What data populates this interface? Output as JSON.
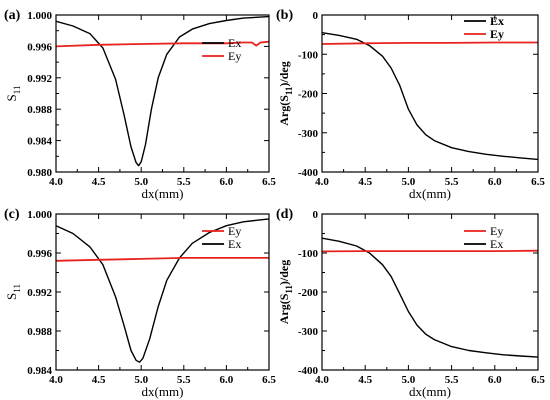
{
  "chart_data": [
    {
      "panel": "(a)",
      "type": "line",
      "xlabel": "dx(mm)",
      "ylabel": "S11",
      "ylabel_main": "S",
      "ylabel_sub": "11",
      "xlim": [
        4.0,
        6.5
      ],
      "ylim": [
        0.98,
        1.0
      ],
      "xticks": [
        4.0,
        4.5,
        5.0,
        5.5,
        6.0,
        6.5
      ],
      "xtick_labels": [
        "4.0",
        "4.5",
        "5.0",
        "5.5",
        "6.0",
        "6.5"
      ],
      "yticks": [
        0.98,
        0.984,
        0.988,
        0.992,
        0.996,
        1.0
      ],
      "ytick_labels": [
        "0.980",
        "0.984",
        "0.988",
        "0.992",
        "0.996",
        "1.000"
      ],
      "legend_bold": false,
      "legend": [
        {
          "name": "Ex",
          "color": "#000000"
        },
        {
          "name": "Ey",
          "color": "#e8231f"
        }
      ],
      "series": [
        {
          "name": "Ex",
          "color": "#000000",
          "x": [
            4.0,
            4.2,
            4.4,
            4.55,
            4.7,
            4.8,
            4.88,
            4.94,
            4.97,
            5.0,
            5.05,
            5.12,
            5.2,
            5.3,
            5.45,
            5.6,
            5.8,
            6.0,
            6.2,
            6.5
          ],
          "y": [
            0.9992,
            0.9986,
            0.9976,
            0.9958,
            0.9918,
            0.9872,
            0.9832,
            0.9812,
            0.9808,
            0.9813,
            0.9835,
            0.988,
            0.992,
            0.995,
            0.9972,
            0.9982,
            0.9989,
            0.9993,
            0.9996,
            0.9998
          ]
        },
        {
          "name": "Ey",
          "color": "#e8231f",
          "x": [
            4.0,
            4.5,
            5.0,
            5.5,
            6.0,
            6.2,
            6.3,
            6.35,
            6.4,
            6.5
          ],
          "y": [
            0.996,
            0.9962,
            0.9963,
            0.9964,
            0.9964,
            0.9965,
            0.9965,
            0.9961,
            0.9965,
            0.9966
          ]
        }
      ]
    },
    {
      "panel": "(b)",
      "type": "line",
      "xlabel": "dx(mm)",
      "ylabel": "Arg(S11)/deg",
      "ylabel_main": "Arg(S",
      "ylabel_sub": "11",
      "ylabel_tail": ")/deg",
      "xlim": [
        4.0,
        6.5
      ],
      "ylim": [
        -400,
        0
      ],
      "xticks": [
        4.0,
        4.5,
        5.0,
        5.5,
        6.0,
        6.5
      ],
      "xtick_labels": [
        "4.0",
        "4.5",
        "5.0",
        "5.5",
        "6.0",
        "6.5"
      ],
      "yticks": [
        -400,
        -300,
        -200,
        -100,
        0
      ],
      "ytick_labels": [
        "-400",
        "-300",
        "-200",
        "-100",
        "0"
      ],
      "legend_bold": true,
      "legend": [
        {
          "name": "Ex",
          "color": "#000000"
        },
        {
          "name": "Ey",
          "color": "#e8231f"
        }
      ],
      "series": [
        {
          "name": "Ex",
          "color": "#000000",
          "x": [
            4.0,
            4.2,
            4.4,
            4.55,
            4.7,
            4.8,
            4.9,
            5.0,
            5.1,
            5.2,
            5.3,
            5.5,
            5.7,
            5.9,
            6.1,
            6.3,
            6.5
          ],
          "y": [
            -45,
            -52,
            -62,
            -78,
            -105,
            -135,
            -180,
            -240,
            -280,
            -305,
            -320,
            -338,
            -348,
            -355,
            -360,
            -364,
            -368
          ]
        },
        {
          "name": "Ey",
          "color": "#e8231f",
          "x": [
            4.0,
            4.5,
            5.0,
            5.5,
            6.0,
            6.5
          ],
          "y": [
            -74,
            -72,
            -71,
            -71,
            -70,
            -70
          ]
        }
      ]
    },
    {
      "panel": "(c)",
      "type": "line",
      "xlabel": "dx(mm)",
      "ylabel": "S11",
      "ylabel_main": "S",
      "ylabel_sub": "11",
      "xlim": [
        4.0,
        6.5
      ],
      "ylim": [
        0.984,
        1.0
      ],
      "xticks": [
        4.0,
        4.5,
        5.0,
        5.5,
        6.0,
        6.5
      ],
      "xtick_labels": [
        "4.0",
        "4.5",
        "5.0",
        "5.5",
        "6.0",
        "6.5"
      ],
      "yticks": [
        0.984,
        0.988,
        0.992,
        0.996,
        1.0
      ],
      "ytick_labels": [
        "0.984",
        "0.988",
        "0.992",
        "0.996",
        "1.000"
      ],
      "legend_bold": false,
      "legend": [
        {
          "name": "Ey",
          "color": "#e8231f"
        },
        {
          "name": "Ex",
          "color": "#000000"
        }
      ],
      "series": [
        {
          "name": "Ex",
          "color": "#000000",
          "x": [
            4.0,
            4.2,
            4.4,
            4.55,
            4.7,
            4.8,
            4.88,
            4.94,
            4.98,
            5.02,
            5.1,
            5.2,
            5.3,
            5.45,
            5.6,
            5.8,
            6.0,
            6.2,
            6.5
          ],
          "y": [
            0.9988,
            0.998,
            0.9966,
            0.9948,
            0.9915,
            0.9885,
            0.986,
            0.985,
            0.9848,
            0.9852,
            0.9872,
            0.9905,
            0.9932,
            0.9955,
            0.997,
            0.9981,
            0.9988,
            0.9992,
            0.9995
          ]
        },
        {
          "name": "Ey",
          "color": "#e8231f",
          "x": [
            4.0,
            4.5,
            5.0,
            5.5,
            6.0,
            6.5
          ],
          "y": [
            0.9952,
            0.9953,
            0.9954,
            0.9955,
            0.9955,
            0.9955
          ]
        }
      ]
    },
    {
      "panel": "(d)",
      "type": "line",
      "xlabel": "dx(mm)",
      "ylabel": "Arg(S11)/deg",
      "ylabel_main": "Arg(S",
      "ylabel_sub": "11",
      "ylabel_tail": ")/deg",
      "xlim": [
        4.0,
        6.5
      ],
      "ylim": [
        -400,
        0
      ],
      "xticks": [
        4.0,
        4.5,
        5.0,
        5.5,
        6.0,
        6.5
      ],
      "xtick_labels": [
        "4.0",
        "4.5",
        "5.0",
        "5.5",
        "6.0",
        "6.5"
      ],
      "yticks": [
        -400,
        -300,
        -200,
        -100,
        0
      ],
      "ytick_labels": [
        "-400",
        "-300",
        "-200",
        "-100",
        "0"
      ],
      "legend_bold": false,
      "legend": [
        {
          "name": "Ey",
          "color": "#e8231f"
        },
        {
          "name": "Ex",
          "color": "#000000"
        }
      ],
      "series": [
        {
          "name": "Ex",
          "color": "#000000",
          "x": [
            4.0,
            4.2,
            4.4,
            4.55,
            4.7,
            4.8,
            4.9,
            5.0,
            5.1,
            5.2,
            5.3,
            5.5,
            5.7,
            5.9,
            6.1,
            6.3,
            6.5
          ],
          "y": [
            -62,
            -70,
            -82,
            -100,
            -130,
            -160,
            -205,
            -250,
            -285,
            -308,
            -322,
            -340,
            -350,
            -356,
            -361,
            -364,
            -367
          ]
        },
        {
          "name": "Ey",
          "color": "#e8231f",
          "x": [
            4.0,
            4.5,
            5.0,
            5.5,
            6.0,
            6.5
          ],
          "y": [
            -96,
            -95,
            -95,
            -95,
            -95,
            -94
          ]
        }
      ]
    }
  ]
}
